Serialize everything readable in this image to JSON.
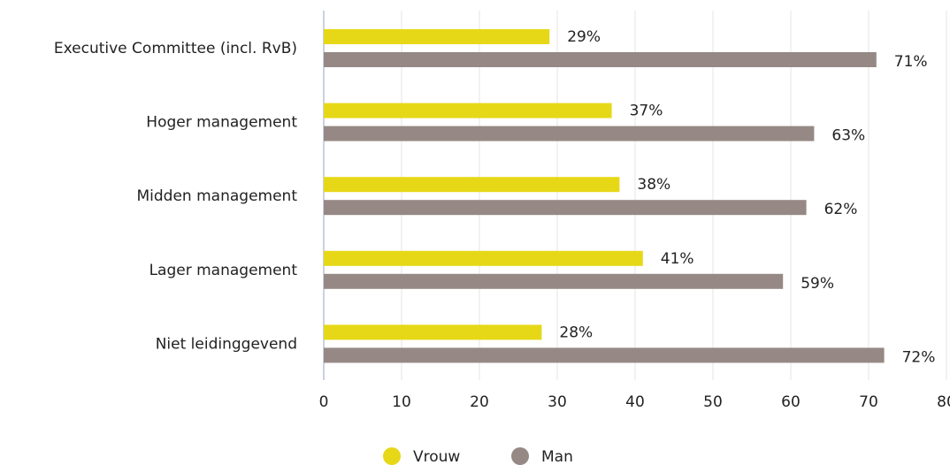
{
  "chart_data": {
    "type": "bar",
    "orientation": "horizontal",
    "categories": [
      "Executive Committee (incl. RvB)",
      "Hoger management",
      "Midden management",
      "Lager management",
      "Niet leidinggevend"
    ],
    "series": [
      {
        "name": "Vrouw",
        "color": "#e6d817",
        "values": [
          29,
          37,
          38,
          41,
          28
        ],
        "value_labels": [
          "29%",
          "37%",
          "38%",
          "41%",
          "28%"
        ]
      },
      {
        "name": "Man",
        "color": "#968985",
        "values": [
          71,
          63,
          62,
          59,
          72
        ],
        "value_labels": [
          "71%",
          "63%",
          "62%",
          "59%",
          "72%"
        ]
      }
    ],
    "xlim": [
      0,
      80
    ],
    "xticks": [
      0,
      10,
      20,
      30,
      40,
      50,
      60,
      70,
      80
    ],
    "grid": true,
    "legend": "bottom"
  }
}
